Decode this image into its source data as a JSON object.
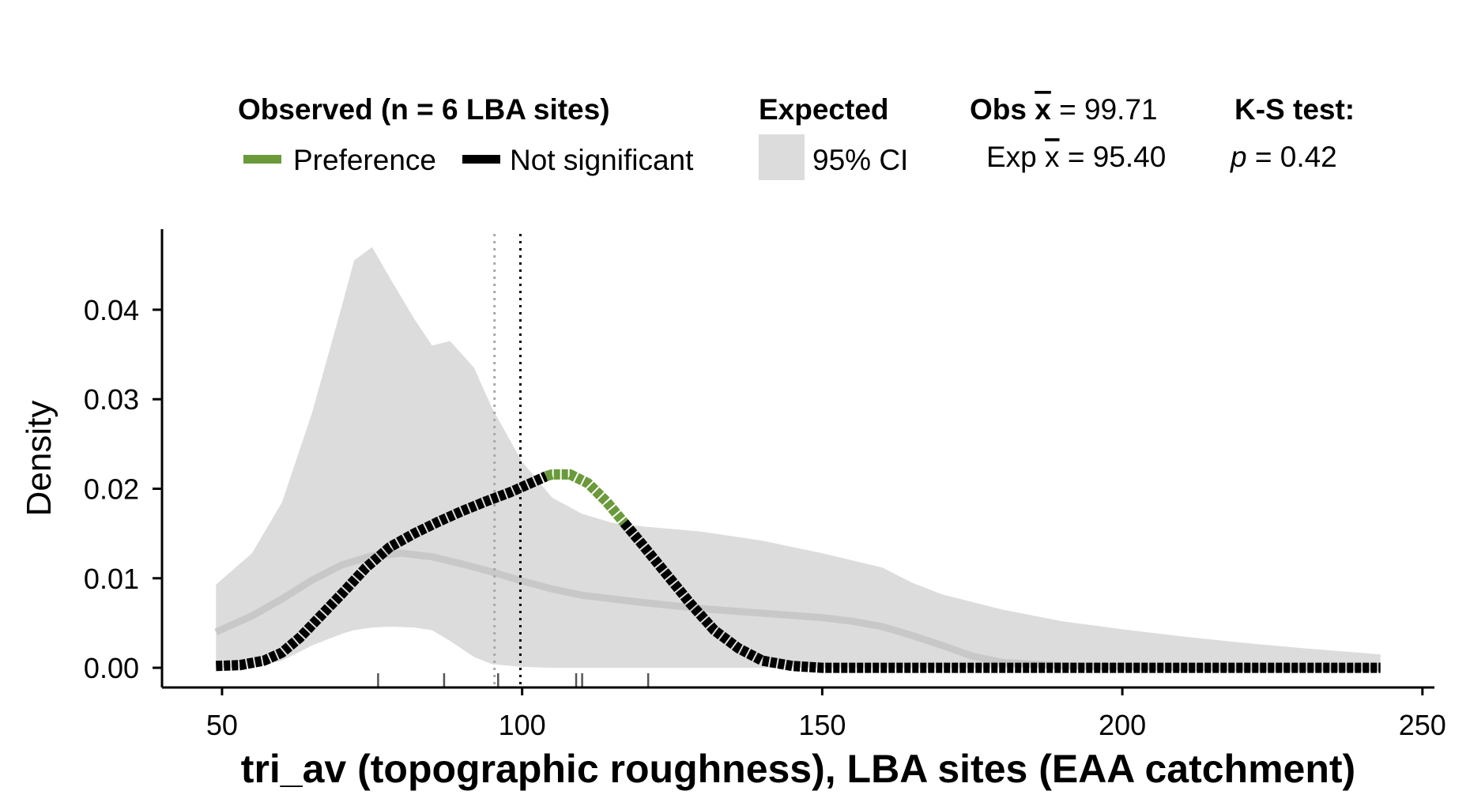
{
  "legend": {
    "observed_title": "Observed (n = 6 LBA sites)",
    "preference_label": "Preference",
    "not_significant_label": "Not significant",
    "expected_title": "Expected",
    "ci_label": "95% CI",
    "obs_mean_prefix": "Obs ",
    "obs_mean_value": " = 99.71",
    "exp_mean_prefix": "Exp ",
    "exp_mean_value": " = 95.40",
    "ks_title": "K-S test:",
    "ks_p_symbol": "p",
    "ks_p_value": " = 0.42"
  },
  "colors": {
    "preference": "#6a9a3a",
    "not_significant": "#000000",
    "ci_band": "#dcdcdc",
    "expected_line": "#c8c8c8",
    "obs_mean_line": "#000000",
    "exp_mean_line": "#a8a8a8"
  },
  "chart_data": {
    "type": "line",
    "xlabel": "tri_av (topographic roughness), LBA sites (EAA catchment)",
    "ylabel": "Density",
    "xlim": [
      40,
      252
    ],
    "ylim": [
      -0.0022,
      0.049
    ],
    "x_ticks": [
      50,
      100,
      150,
      200,
      250
    ],
    "x_tick_labels": [
      "50",
      "100",
      "150",
      "200",
      "250"
    ],
    "y_ticks": [
      0.0,
      0.01,
      0.02,
      0.03,
      0.04
    ],
    "y_tick_labels": [
      "0.00",
      "0.01",
      "0.02",
      "0.03",
      "0.04"
    ],
    "obs_mean": 99.71,
    "exp_mean": 95.4,
    "ci_band": {
      "x": [
        49,
        55,
        60,
        65,
        70,
        72,
        75,
        78,
        82,
        85,
        88,
        92,
        95,
        100,
        105,
        110,
        115,
        120,
        130,
        140,
        150,
        160,
        165,
        170,
        180,
        190,
        200,
        210,
        220,
        230,
        243
      ],
      "upper": [
        0.0093,
        0.0128,
        0.0185,
        0.0285,
        0.0405,
        0.0455,
        0.047,
        0.0435,
        0.039,
        0.036,
        0.0365,
        0.0335,
        0.029,
        0.023,
        0.019,
        0.0172,
        0.0162,
        0.0158,
        0.0152,
        0.0142,
        0.0128,
        0.0112,
        0.0095,
        0.0082,
        0.0065,
        0.0052,
        0.0043,
        0.0035,
        0.0028,
        0.0022,
        0.0015
      ],
      "lower": [
        0.0,
        0.0,
        0.0008,
        0.0025,
        0.0038,
        0.0042,
        0.0045,
        0.0046,
        0.0045,
        0.0042,
        0.003,
        0.0012,
        0.0004,
        0.0001,
        0.0,
        0.0,
        0.0,
        0.0,
        0.0,
        0.0,
        0.0,
        0.0,
        0.0,
        0.0,
        0.0,
        0.0,
        0.0,
        0.0,
        0.0,
        0.0,
        0.0
      ]
    },
    "series": [
      {
        "name": "Expected",
        "x": [
          49,
          55,
          60,
          65,
          70,
          75,
          80,
          85,
          90,
          95,
          100,
          105,
          110,
          120,
          130,
          140,
          150,
          155,
          160,
          165,
          170,
          175,
          180,
          190,
          200,
          220,
          243
        ],
        "y": [
          0.004,
          0.0058,
          0.0077,
          0.0098,
          0.0115,
          0.0125,
          0.0128,
          0.0124,
          0.0116,
          0.0107,
          0.0097,
          0.0088,
          0.0081,
          0.0073,
          0.0066,
          0.0061,
          0.0056,
          0.0052,
          0.0046,
          0.0036,
          0.0025,
          0.0013,
          0.0006,
          0.0002,
          0.0001,
          0.0,
          0.0
        ]
      },
      {
        "name": "Observed",
        "x": [
          49,
          53,
          57,
          60,
          63,
          66,
          70,
          74,
          78,
          82,
          86,
          90,
          94,
          98,
          102,
          104,
          105,
          108,
          111,
          114,
          117,
          120,
          124,
          128,
          132,
          136,
          140,
          145,
          150,
          160,
          243
        ],
        "y": [
          0.0002,
          0.0003,
          0.0008,
          0.0017,
          0.0034,
          0.0055,
          0.0083,
          0.0112,
          0.0135,
          0.015,
          0.0163,
          0.0175,
          0.0186,
          0.0196,
          0.0208,
          0.0214,
          0.0216,
          0.0216,
          0.0206,
          0.0186,
          0.0162,
          0.0138,
          0.0105,
          0.0072,
          0.0042,
          0.0022,
          0.0008,
          0.0002,
          0.0,
          0.0,
          0.0
        ],
        "preference_range": [
          104,
          117
        ]
      }
    ],
    "rug": [
      76,
      87,
      96,
      109,
      110,
      121
    ]
  }
}
